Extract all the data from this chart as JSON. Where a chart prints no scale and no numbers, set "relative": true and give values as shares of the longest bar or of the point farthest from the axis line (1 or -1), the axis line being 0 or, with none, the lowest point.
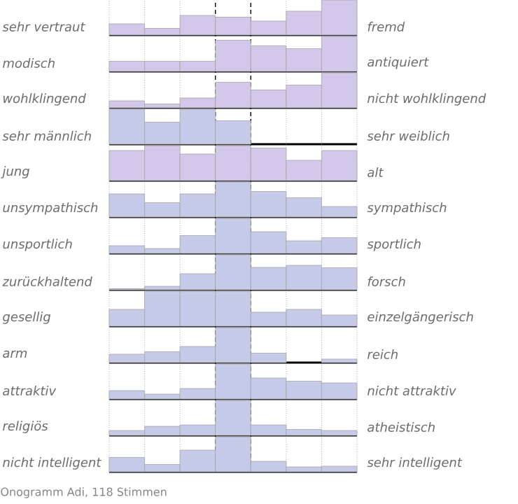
{
  "chart_data": [
    {
      "type": "bar",
      "relative": true,
      "grid": "x",
      "categories": [
        null,
        null,
        null,
        null,
        null,
        null,
        null
      ],
      "values": [
        0.32,
        0.19,
        0.56,
        0.51,
        0.4,
        0.68,
        1
      ],
      "color": "#d3c8ea",
      "ylabel": "sehr vertraut",
      "y2label": "fremd"
    },
    {
      "type": "bar",
      "relative": true,
      "grid": "x",
      "categories": [
        null,
        null,
        null,
        null,
        null,
        null,
        null
      ],
      "values": [
        0.29,
        0.29,
        0.29,
        0.89,
        0.73,
        0.65,
        1
      ],
      "color": "#d3c8ea",
      "ylabel": "modisch",
      "y2label": "antiquiert"
    },
    {
      "type": "bar",
      "relative": true,
      "grid": "x",
      "categories": [
        null,
        null,
        null,
        null,
        null,
        null,
        null
      ],
      "values": [
        0.2,
        0.11,
        0.28,
        0.73,
        0.51,
        0.65,
        1
      ],
      "color": "#d3c8ea",
      "ylabel": "wohlklingend",
      "y2label": "nicht wohlklingend"
    },
    {
      "type": "bar",
      "relative": true,
      "grid": "x",
      "categories": [
        null,
        null,
        null,
        null,
        null,
        null,
        null
      ],
      "values": [
        1,
        0.63,
        1,
        0.67,
        0,
        0,
        0
      ],
      "color": "#c5cae9",
      "ylabel": "sehr männlich",
      "y2label": "sehr weiblich"
    },
    {
      "type": "bar",
      "relative": true,
      "grid": "x",
      "categories": [
        null,
        null,
        null,
        null,
        null,
        null,
        null
      ],
      "values": [
        0.86,
        1,
        0.76,
        1,
        0.93,
        0.58,
        0.86
      ],
      "color": "#d3c8ea",
      "ylabel": "jung",
      "y2label": "alt"
    },
    {
      "type": "bar",
      "relative": true,
      "grid": "x",
      "categories": [
        null,
        null,
        null,
        null,
        null,
        null,
        null
      ],
      "values": [
        0.66,
        0.41,
        0.66,
        1,
        0.73,
        0.55,
        0.3
      ],
      "color": "#c5cae9",
      "ylabel": "unsympathisch",
      "y2label": "sympathisch"
    },
    {
      "type": "bar",
      "relative": true,
      "grid": "x",
      "categories": [
        null,
        null,
        null,
        null,
        null,
        null,
        null
      ],
      "values": [
        0.22,
        0.14,
        0.51,
        1,
        0.62,
        0.36,
        0.45
      ],
      "color": "#c5cae9",
      "ylabel": "unsportlich",
      "y2label": "sportlich"
    },
    {
      "type": "bar",
      "relative": true,
      "grid": "x",
      "categories": [
        null,
        null,
        null,
        null,
        null,
        null,
        null
      ],
      "values": [
        0.03,
        0.1,
        0.46,
        1,
        0.64,
        0.7,
        0.63
      ],
      "color": "#c5cae9",
      "ylabel": "zurückhaltend",
      "y2label": "forsch"
    },
    {
      "type": "bar",
      "relative": true,
      "grid": "x",
      "categories": [
        null,
        null,
        null,
        null,
        null,
        null,
        null
      ],
      "values": [
        0.48,
        1,
        1,
        1,
        0.4,
        0.48,
        0.32
      ],
      "color": "#c5cae9",
      "ylabel": "gesellig",
      "y2label": "einzelgängerisch"
    },
    {
      "type": "bar",
      "relative": true,
      "grid": "x",
      "categories": [
        null,
        null,
        null,
        null,
        null,
        null,
        null
      ],
      "values": [
        0.24,
        0.31,
        0.46,
        1,
        0.27,
        0,
        0.1
      ],
      "color": "#c5cae9",
      "ylabel": "arm",
      "y2label": "reich"
    },
    {
      "type": "bar",
      "relative": true,
      "grid": "x",
      "categories": [
        null,
        null,
        null,
        null,
        null,
        null,
        null
      ],
      "values": [
        0.24,
        0.14,
        0.3,
        1,
        0.6,
        0.51,
        0.46
      ],
      "color": "#c5cae9",
      "ylabel": "attraktiv",
      "y2label": "nicht attraktiv"
    },
    {
      "type": "bar",
      "relative": true,
      "grid": "x",
      "categories": [
        null,
        null,
        null,
        null,
        null,
        null,
        null
      ],
      "values": [
        0.14,
        0.26,
        0.3,
        1,
        0.3,
        0.17,
        0.14
      ],
      "color": "#c5cae9",
      "ylabel": "religiös",
      "y2label": "atheistisch"
    },
    {
      "type": "bar",
      "relative": true,
      "grid": "x",
      "categories": [
        null,
        null,
        null,
        null,
        null,
        null,
        null
      ],
      "values": [
        0.41,
        0.21,
        0.62,
        1,
        0.3,
        0.14,
        0.16
      ],
      "color": "#c5cae9",
      "ylabel": "nicht intelligent",
      "y2label": "sehr intelligent",
      "annotations": [
        "Onogramm Adi, 118 Stimmen"
      ]
    }
  ]
}
